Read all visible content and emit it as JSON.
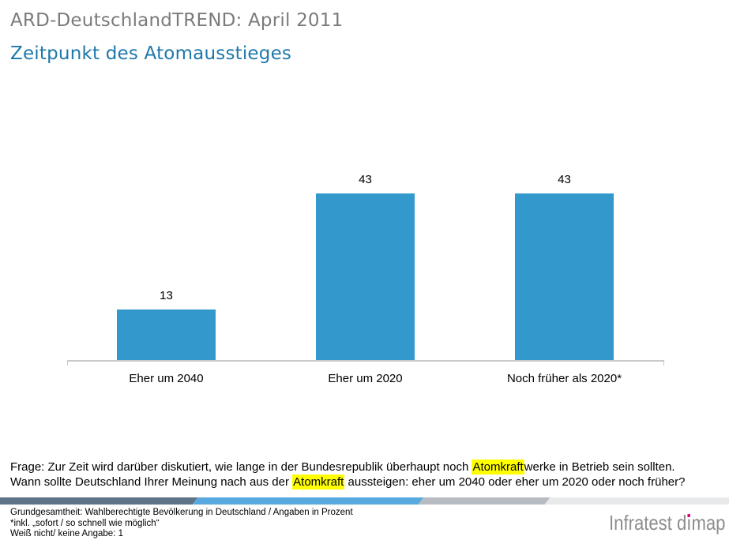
{
  "page": {
    "supertitle": "ARD-DeutschlandTREND: April 2011",
    "title": "Zeitpunkt des Atomausstieges"
  },
  "chart_data": {
    "type": "bar",
    "categories": [
      "Eher um 2040",
      "Eher um 2020",
      "Noch früher als 2020*"
    ],
    "values": [
      13,
      43,
      43
    ],
    "title": "Zeitpunkt des Atomausstieges",
    "xlabel": "",
    "ylabel": "",
    "ylim": [
      0,
      47
    ],
    "unit": "Prozent",
    "grid": false,
    "legend": false,
    "value_labels_shown": true,
    "bar_color": "#3399cc",
    "axis_color": "#c9c9c9"
  },
  "question": {
    "highlight_color": "#ffff00",
    "lines": [
      [
        {
          "t": "Frage: Zur Zeit wird darüber diskutiert, wie lange in der Bundesrepublik überhaupt noch ",
          "hl": false
        },
        {
          "t": "Atomkraft",
          "hl": true
        },
        {
          "t": "werke in Betrieb sein sollten.",
          "hl": false
        }
      ],
      [
        {
          "t": "Wann sollte Deutschland Ihrer Meinung nach aus der ",
          "hl": false
        },
        {
          "t": "Atomkraft",
          "hl": true
        },
        {
          "t": " aussteigen: eher um 2040 oder eher um 2020 oder noch früher?",
          "hl": false
        }
      ]
    ]
  },
  "footer": {
    "lines": [
      "Grundgesamtheit: Wahlberechtigte Bevölkerung in Deutschland / Angaben in Prozent",
      "*inkl. „sofort / so schnell wie möglich“",
      "Weiß nicht/ keine Angabe: 1"
    ],
    "stripe_colors": [
      "#5d7386",
      "#58a9df",
      "#b6bcc2",
      "#e7e9eb"
    ],
    "logo": {
      "prefix": "Infratest d",
      "dotless_i": "ı",
      "suffix": "map",
      "text": "Infratest dimap",
      "dot_color": "#e5007d",
      "text_color": "#8d8d8d"
    }
  },
  "colors": {
    "supertitle": "#7b7b7b",
    "title_blue": "#1e78ab",
    "text": "#000000",
    "background": "#ffffff"
  }
}
